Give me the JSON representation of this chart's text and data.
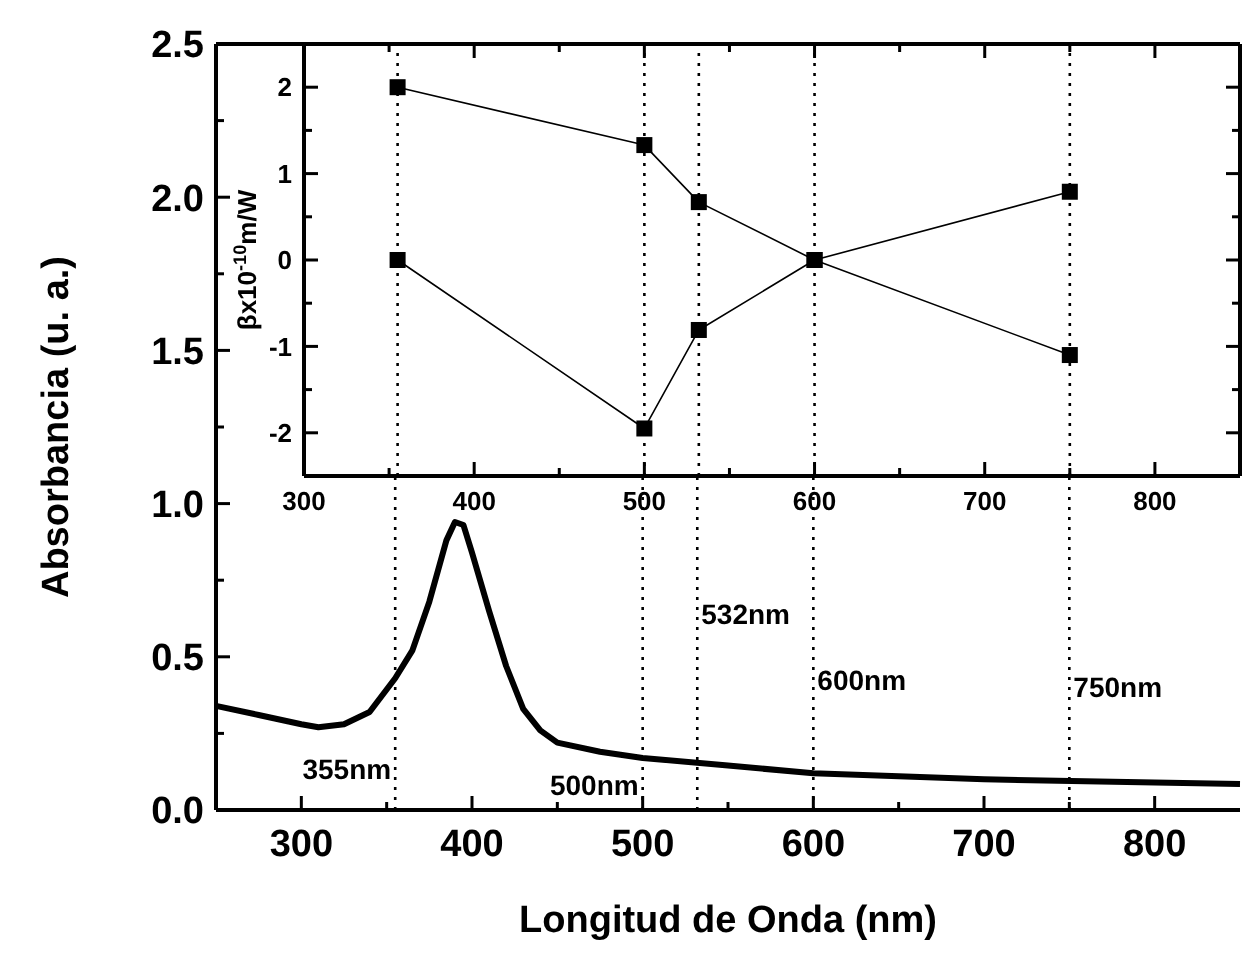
{
  "chart_data": [
    {
      "type": "line",
      "xlabel": "Longitud de Onda (nm)",
      "ylabel": "Absorbancia (u. a.)",
      "xlim": [
        250,
        850
      ],
      "ylim": [
        0,
        2.5
      ],
      "xticks": [
        300,
        {
          "value": 350,
          "label": null
        },
        400,
        {
          "value": 450,
          "label": null
        },
        500,
        {
          "value": 550,
          "label": null
        },
        600,
        {
          "value": 650,
          "label": null
        },
        700,
        {
          "value": 750,
          "label": null
        },
        800
      ],
      "yticks": [
        {
          "value": 0,
          "label": "0.0"
        },
        {
          "value": 0.25,
          "label": null
        },
        {
          "value": 0.5,
          "label": "0.5"
        },
        {
          "value": 0.75,
          "label": null
        },
        {
          "value": 1,
          "label": "1.0"
        },
        {
          "value": 1.25,
          "label": null
        },
        {
          "value": 1.5,
          "label": "1.5"
        },
        {
          "value": 1.75,
          "label": null
        },
        {
          "value": 2,
          "label": "2.0"
        },
        {
          "value": 2.25,
          "label": null
        },
        {
          "value": 2.5,
          "label": "2.5"
        }
      ],
      "series": [
        {
          "color": "#000000",
          "x": [
            250,
            275,
            300,
            310,
            325,
            340,
            355,
            365,
            375,
            385,
            390,
            395,
            400,
            410,
            420,
            430,
            440,
            450,
            475,
            500,
            550,
            600,
            700,
            800,
            850
          ],
          "values": [
            0.34,
            0.31,
            0.28,
            0.27,
            0.28,
            0.32,
            0.43,
            0.52,
            0.68,
            0.88,
            0.94,
            0.93,
            0.84,
            0.65,
            0.47,
            0.33,
            0.26,
            0.22,
            0.19,
            0.17,
            0.145,
            0.12,
            0.1,
            0.09,
            0.085
          ]
        }
      ],
      "ref_lines": [
        {
          "axis": "x",
          "value": 355,
          "label": "355nm",
          "color": "#000000",
          "line_style": "dotted"
        },
        {
          "axis": "x",
          "value": 500,
          "label": "500nm",
          "color": "#000000",
          "line_style": "dotted"
        },
        {
          "axis": "x",
          "value": 532,
          "label": "532nm",
          "color": "#000000",
          "line_style": "dotted"
        },
        {
          "axis": "x",
          "value": 600,
          "label": "600nm",
          "color": "#000000",
          "line_style": "dotted"
        },
        {
          "axis": "x",
          "value": 750,
          "label": "750nm",
          "color": "#000000",
          "line_style": "dotted"
        }
      ],
      "marker": "none",
      "line_style": "solid",
      "grid": false
    },
    {
      "type": "line",
      "ylabel": "βx10$^{-10}$m/W",
      "xlim": [
        300,
        850
      ],
      "ylim": [
        -2.5,
        2.5
      ],
      "xticks": [
        300,
        {
          "value": 350,
          "label": null
        },
        400,
        {
          "value": 450,
          "label": null
        },
        500,
        {
          "value": 550,
          "label": null
        },
        600,
        {
          "value": 650,
          "label": null
        },
        700,
        {
          "value": 750,
          "label": null
        },
        800
      ],
      "yticks": [
        {
          "value": -2.5,
          "label": null
        },
        -2,
        {
          "value": -1.5,
          "label": null
        },
        -1,
        {
          "value": -0.5,
          "label": null
        },
        0,
        {
          "value": 0.5,
          "label": null
        },
        1,
        {
          "value": 1.5,
          "label": null
        },
        2
      ],
      "series": [
        {
          "color": "#000000",
          "x": [
            355,
            500,
            532,
            600,
            750
          ],
          "values": [
            2.0,
            1.33,
            0.67,
            0,
            -1.1
          ]
        },
        {
          "color": "#000000",
          "x": [
            355,
            500,
            532,
            600,
            750
          ],
          "values": [
            0,
            -1.95,
            -0.81,
            0,
            0.79
          ]
        }
      ],
      "ref_lines": [
        {
          "axis": "x",
          "value": 355,
          "color": "#000000",
          "line_style": "dotted"
        },
        {
          "axis": "x",
          "value": 500,
          "color": "#000000",
          "line_style": "dotted"
        },
        {
          "axis": "x",
          "value": 532,
          "color": "#000000",
          "line_style": "dotted"
        },
        {
          "axis": "x",
          "value": 600,
          "color": "#000000",
          "line_style": "dotted"
        },
        {
          "axis": "x",
          "value": 750,
          "color": "#000000",
          "line_style": "dotted"
        }
      ],
      "marker": "square",
      "line_style": "solid",
      "grid": false
    }
  ]
}
